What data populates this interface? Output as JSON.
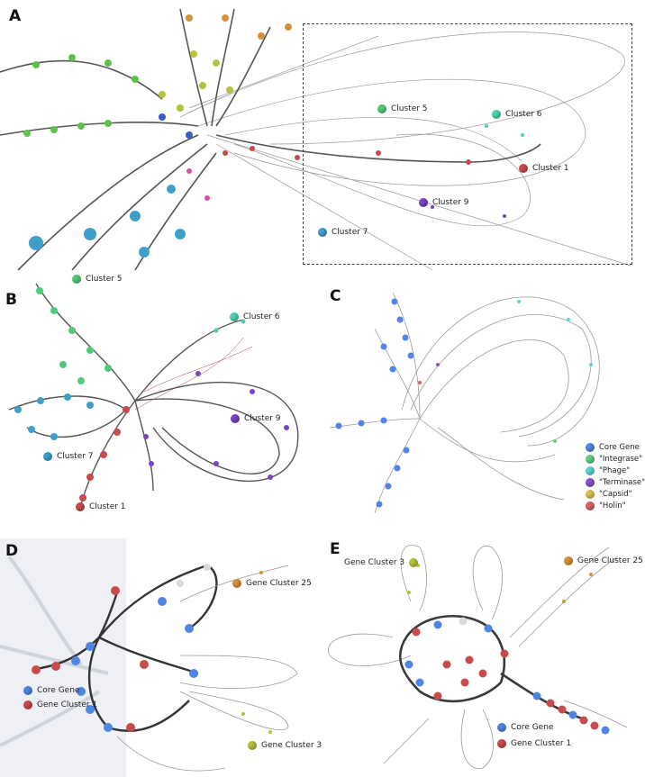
{
  "panels": {
    "A": {
      "letter": "A",
      "labels": [
        {
          "text": "Cluster 5",
          "color": "#52c97a"
        },
        {
          "text": "Cluster 6",
          "color": "#4fd1b0"
        },
        {
          "text": "Cluster 1",
          "color": "#c94a4a"
        },
        {
          "text": "Cluster 9",
          "color": "#7a44c9"
        },
        {
          "text": "Cluster 7",
          "color": "#3ea0c9"
        }
      ]
    },
    "B": {
      "letter": "B",
      "labels": [
        {
          "text": "Cluster 5",
          "color": "#52c97a"
        },
        {
          "text": "Cluster 6",
          "color": "#4fd1b0"
        },
        {
          "text": "Cluster 9",
          "color": "#7a44c9"
        },
        {
          "text": "Cluster 7",
          "color": "#3ea0c9"
        },
        {
          "text": "Cluster 1",
          "color": "#c94a4a"
        }
      ]
    },
    "C": {
      "letter": "C",
      "legend": [
        {
          "text": "Core Gene",
          "color": "#4f86e6"
        },
        {
          "text": "\"Integrase\"",
          "color": "#62cf82"
        },
        {
          "text": "\"Phage\"",
          "color": "#5ad4d4"
        },
        {
          "text": "\"Terminase\"",
          "color": "#8a52cf"
        },
        {
          "text": "\"Capsid\"",
          "color": "#d9c34a"
        },
        {
          "text": "\"Holin\"",
          "color": "#d96262"
        }
      ]
    },
    "D": {
      "letter": "D",
      "labels": [
        {
          "text": "Gene Cluster 25",
          "color": "#d3923a"
        },
        {
          "text": "Core Gene",
          "color": "#4f86e6"
        },
        {
          "text": "Gene Cluster 1",
          "color": "#c94a4a"
        },
        {
          "text": "Gene Cluster 3",
          "color": "#b6c23a"
        }
      ]
    },
    "E": {
      "letter": "E",
      "labels": [
        {
          "text": "Gene Cluster 3",
          "color": "#b6c23a"
        },
        {
          "text": "Gene Cluster 25",
          "color": "#d3923a"
        },
        {
          "text": "Core Gene",
          "color": "#4f86e6"
        },
        {
          "text": "Gene Cluster 1",
          "color": "#c94a4a"
        }
      ]
    }
  }
}
